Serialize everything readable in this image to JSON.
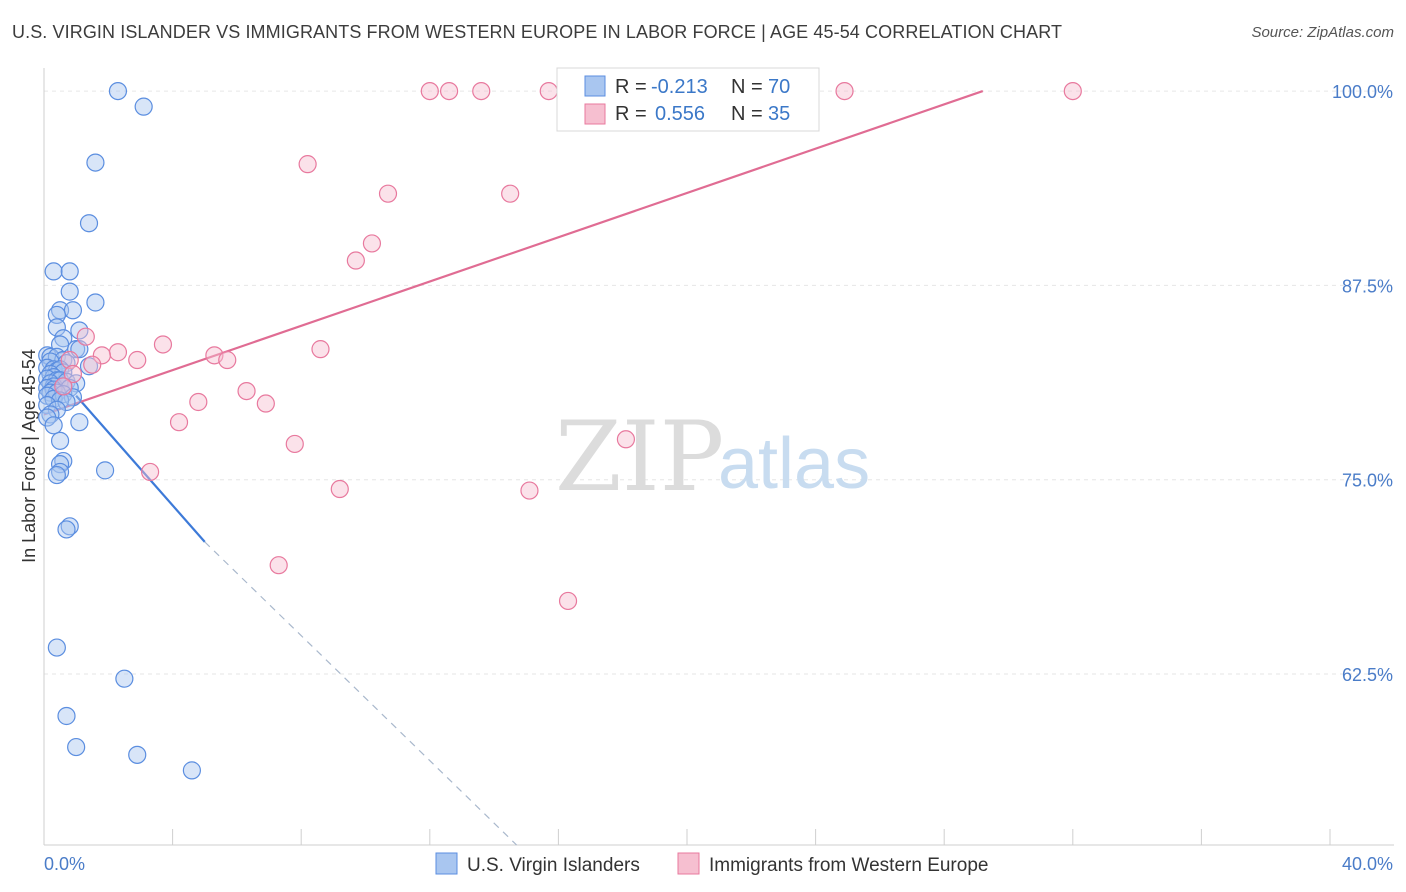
{
  "title": "U.S. VIRGIN ISLANDER VS IMMIGRANTS FROM WESTERN EUROPE IN LABOR FORCE | AGE 45-54 CORRELATION CHART",
  "source": "Source: ZipAtlas.com",
  "watermark": {
    "zip": "ZIP",
    "atlas": "atlas"
  },
  "chart_data": {
    "type": "scatter",
    "title": "U.S. VIRGIN ISLANDER VS IMMIGRANTS FROM WESTERN EUROPE IN LABOR FORCE | AGE 45-54 CORRELATION CHART",
    "xlabel": "",
    "ylabel": "In Labor Force | Age 45-54",
    "xlim": [
      0,
      40
    ],
    "ylim": [
      51.5,
      102
    ],
    "x_tick_labels": [
      "0.0%",
      "40.0%"
    ],
    "y_ticks": [
      100,
      87.5,
      75,
      62.5
    ],
    "y_tick_labels": [
      "100.0%",
      "87.5%",
      "75.0%",
      "62.5%"
    ],
    "grid": true,
    "legend": {
      "placement": "top-center",
      "rows": [
        {
          "r_label": "R =",
          "r_value": "-0.213",
          "n_label": "N =",
          "n_value": "70"
        },
        {
          "r_label": "R =",
          "r_value": "0.556",
          "n_label": "N =",
          "n_value": "35"
        }
      ]
    },
    "colors": {
      "blue": "#5b8ee0",
      "blue_fill": "#a9c6f0",
      "pink": "#e8799e",
      "pink_fill": "#f6bfd0"
    },
    "series": [
      {
        "name": "U.S. Virgin Islanders",
        "points": [
          [
            2.3,
            100.0
          ],
          [
            3.1,
            99.0
          ],
          [
            1.6,
            95.4
          ],
          [
            1.4,
            91.5
          ],
          [
            0.3,
            88.4
          ],
          [
            0.8,
            88.4
          ],
          [
            0.8,
            87.1
          ],
          [
            1.6,
            86.4
          ],
          [
            0.5,
            85.9
          ],
          [
            0.9,
            85.9
          ],
          [
            0.4,
            85.6
          ],
          [
            0.4,
            84.8
          ],
          [
            1.1,
            84.6
          ],
          [
            0.6,
            84.1
          ],
          [
            0.5,
            83.7
          ],
          [
            1.0,
            83.4
          ],
          [
            1.1,
            83.4
          ],
          [
            0.1,
            83.0
          ],
          [
            0.2,
            82.9
          ],
          [
            0.4,
            82.9
          ],
          [
            0.6,
            82.7
          ],
          [
            0.2,
            82.6
          ],
          [
            0.7,
            82.5
          ],
          [
            1.4,
            82.3
          ],
          [
            0.1,
            82.2
          ],
          [
            0.3,
            82.1
          ],
          [
            0.4,
            82.0
          ],
          [
            0.5,
            82.1
          ],
          [
            0.6,
            81.9
          ],
          [
            0.2,
            81.8
          ],
          [
            0.3,
            81.6
          ],
          [
            0.1,
            81.5
          ],
          [
            0.4,
            81.4
          ],
          [
            0.5,
            81.4
          ],
          [
            0.7,
            81.3
          ],
          [
            1.0,
            81.2
          ],
          [
            0.2,
            81.2
          ],
          [
            0.3,
            81.0
          ],
          [
            0.6,
            81.0
          ],
          [
            0.8,
            80.9
          ],
          [
            0.1,
            80.9
          ],
          [
            0.3,
            80.8
          ],
          [
            0.2,
            80.6
          ],
          [
            0.4,
            80.6
          ],
          [
            0.6,
            80.5
          ],
          [
            0.1,
            80.4
          ],
          [
            0.9,
            80.3
          ],
          [
            0.3,
            80.2
          ],
          [
            0.5,
            80.1
          ],
          [
            0.7,
            80.0
          ],
          [
            0.1,
            79.8
          ],
          [
            0.4,
            79.5
          ],
          [
            0.2,
            79.2
          ],
          [
            0.1,
            79.0
          ],
          [
            1.1,
            78.7
          ],
          [
            0.3,
            78.5
          ],
          [
            0.5,
            77.5
          ],
          [
            0.6,
            76.2
          ],
          [
            0.5,
            76.0
          ],
          [
            1.9,
            75.6
          ],
          [
            0.5,
            75.5
          ],
          [
            0.4,
            75.3
          ],
          [
            0.8,
            72.0
          ],
          [
            0.7,
            71.8
          ],
          [
            0.4,
            64.2
          ],
          [
            2.5,
            62.2
          ],
          [
            0.7,
            59.8
          ],
          [
            1.0,
            57.8
          ],
          [
            2.9,
            57.3
          ],
          [
            4.6,
            56.3
          ]
        ]
      },
      {
        "name": "Immigrants from Western Europe",
        "points": [
          [
            12.0,
            100.0
          ],
          [
            12.6,
            100.0
          ],
          [
            13.6,
            100.0
          ],
          [
            15.7,
            100.0
          ],
          [
            17.8,
            100.0
          ],
          [
            24.9,
            100.0
          ],
          [
            32.0,
            100.0
          ],
          [
            8.2,
            95.3
          ],
          [
            10.7,
            93.4
          ],
          [
            14.5,
            93.4
          ],
          [
            10.2,
            90.2
          ],
          [
            9.7,
            89.1
          ],
          [
            3.7,
            83.7
          ],
          [
            8.6,
            83.4
          ],
          [
            2.3,
            83.2
          ],
          [
            5.3,
            83.0
          ],
          [
            2.9,
            82.7
          ],
          [
            5.7,
            82.7
          ],
          [
            0.8,
            82.7
          ],
          [
            1.8,
            83.0
          ],
          [
            1.5,
            82.4
          ],
          [
            0.9,
            81.8
          ],
          [
            6.3,
            80.7
          ],
          [
            4.8,
            80.0
          ],
          [
            6.9,
            79.9
          ],
          [
            4.2,
            78.7
          ],
          [
            7.8,
            77.3
          ],
          [
            18.1,
            77.6
          ],
          [
            3.3,
            75.5
          ],
          [
            9.2,
            74.4
          ],
          [
            15.1,
            74.3
          ],
          [
            7.3,
            69.5
          ],
          [
            16.3,
            67.2
          ],
          [
            1.3,
            84.2
          ],
          [
            0.6,
            81.0
          ]
        ]
      }
    ],
    "trend_lines": [
      {
        "series": "U.S. Virgin Islanders",
        "solid": [
          [
            1.0,
            80.4
          ],
          [
            5.0,
            71.0
          ]
        ],
        "dashed": [
          [
            5.0,
            71.0
          ],
          [
            14.7,
            51.5
          ]
        ]
      },
      {
        "series": "Immigrants from Western Europe",
        "solid": [
          [
            0.0,
            79.2
          ],
          [
            29.2,
            100.0
          ]
        ]
      }
    ]
  }
}
